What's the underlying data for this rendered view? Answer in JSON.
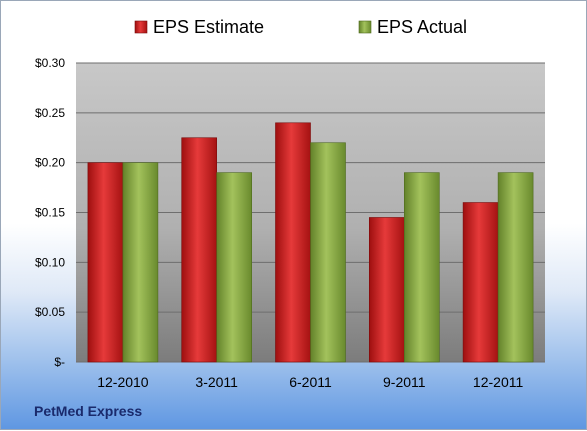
{
  "chart_data": {
    "type": "bar",
    "categories": [
      "12-2010",
      "3-2011",
      "6-2011",
      "9-2011",
      "12-2011"
    ],
    "series": [
      {
        "name": "EPS Estimate",
        "values": [
          0.2,
          0.225,
          0.24,
          0.145,
          0.16
        ],
        "color": "#d42a2a"
      },
      {
        "name": "EPS Actual",
        "values": [
          0.2,
          0.19,
          0.22,
          0.19,
          0.19
        ],
        "color": "#8fb04a"
      }
    ],
    "ylim": [
      0,
      0.3
    ],
    "yticks": [
      0,
      0.05,
      0.1,
      0.15,
      0.2,
      0.25,
      0.3
    ],
    "ytick_labels": [
      "$-",
      "$0.05",
      "$0.10",
      "$0.15",
      "$0.20",
      "$0.25",
      "$0.30"
    ],
    "grid": true,
    "legend_position": "top"
  },
  "footer": {
    "company": "PetMed Express"
  }
}
